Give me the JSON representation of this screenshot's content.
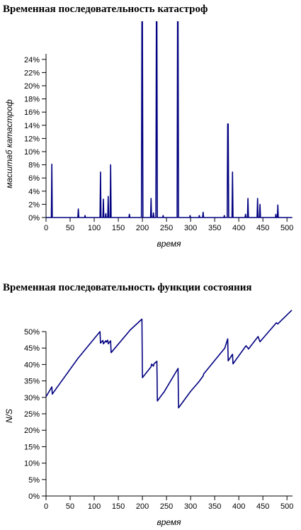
{
  "chart_data": [
    {
      "type": "line",
      "title": "Временная последовательность катастроф",
      "xlabel": "время",
      "ylabel": "масштаб катастроф",
      "xlim": [
        0,
        510
      ],
      "ylim": [
        0,
        25
      ],
      "x_ticks": [
        0,
        50,
        100,
        150,
        200,
        250,
        300,
        350,
        400,
        450,
        500
      ],
      "y_ticks": [
        "0%",
        "2%",
        "4%",
        "6%",
        "8%",
        "10%",
        "12%",
        "14%",
        "16%",
        "18%",
        "20%",
        "22%",
        "24%"
      ],
      "line_color": "#000080",
      "series": [
        {
          "x": [
            0,
            11,
            12,
            13,
            14,
            66,
            67,
            68,
            80,
            81,
            82,
            112,
            113,
            114,
            118,
            119,
            120,
            123,
            124,
            125,
            128,
            129,
            130,
            133,
            134,
            135,
            172,
            173,
            174,
            198,
            199,
            200,
            201,
            202,
            217,
            218,
            219,
            222,
            223,
            224,
            228,
            229,
            230,
            231,
            232,
            242,
            243,
            244,
            272,
            273,
            274,
            275,
            276,
            298,
            299,
            300,
            317,
            318,
            319,
            325,
            326,
            327,
            369,
            370,
            371,
            376,
            377,
            378,
            379,
            380,
            386,
            387,
            388,
            413,
            414,
            415,
            418,
            419,
            420,
            438,
            439,
            440,
            443,
            444,
            445,
            476,
            477,
            478,
            480,
            481,
            482,
            510
          ],
          "y": [
            0,
            0,
            8.1,
            0,
            0,
            0,
            1.3,
            0,
            0,
            0.3,
            0,
            0,
            6.9,
            0,
            0,
            2.8,
            0,
            0,
            0.6,
            0,
            0,
            3.2,
            0,
            0,
            8.0,
            0,
            0,
            0.5,
            0,
            0,
            30,
            30,
            0,
            0,
            0,
            2.9,
            0,
            0,
            0.7,
            0,
            0,
            30,
            30,
            0,
            0,
            0,
            0.3,
            0,
            0,
            30,
            30,
            0,
            0,
            0,
            0.3,
            0,
            0,
            0.3,
            0,
            0,
            0.8,
            0,
            0,
            0.3,
            0,
            0,
            14.2,
            14.2,
            0,
            0,
            0,
            6.9,
            0,
            0,
            0.5,
            0,
            0,
            2.9,
            0,
            0,
            2.9,
            0,
            0,
            2.0,
            0,
            0,
            0.5,
            0,
            0,
            1.9,
            0,
            0
          ]
        }
      ]
    },
    {
      "type": "line",
      "title": "Временная последовательность функции состояния",
      "xlabel": "время",
      "ylabel": "N/S",
      "xlim": [
        0,
        510
      ],
      "ylim": [
        0,
        52
      ],
      "x_ticks": [
        0,
        50,
        100,
        150,
        200,
        250,
        300,
        350,
        400,
        450,
        500
      ],
      "y_ticks": [
        "0%",
        "5%",
        "10%",
        "15%",
        "20%",
        "25%",
        "30%",
        "35%",
        "40%",
        "45%",
        "50%"
      ],
      "line_color": "#000080",
      "series": [
        {
          "x": [
            0,
            12,
            13,
            66,
            67,
            112,
            113,
            118,
            119,
            124,
            125,
            128,
            129,
            134,
            135,
            173,
            174,
            199,
            200,
            218,
            219,
            223,
            224,
            230,
            231,
            243,
            244,
            274,
            275,
            299,
            300,
            318,
            319,
            326,
            327,
            370,
            371,
            377,
            378,
            387,
            388,
            414,
            415,
            419,
            420,
            439,
            440,
            444,
            445,
            477,
            478,
            481,
            482,
            510
          ],
          "y": [
            30.2,
            33.2,
            31.0,
            41.8,
            42.0,
            50.0,
            46.5,
            47.3,
            46.3,
            47.2,
            46.8,
            47.4,
            46.3,
            47.2,
            43.6,
            50.2,
            50.4,
            53.8,
            36.0,
            39.3,
            40.1,
            39.5,
            40.2,
            41.0,
            28.9,
            31.3,
            31.4,
            38.8,
            26.8,
            31.6,
            31.8,
            34.9,
            35.1,
            36.5,
            37.1,
            44.8,
            45.0,
            47.8,
            41.1,
            43.1,
            40.2,
            45.5,
            45.7,
            45.0,
            44.7,
            48.3,
            48.5,
            46.9,
            47.1,
            52.5,
            52.7,
            52.3,
            52.5,
            56.5
          ]
        }
      ]
    }
  ]
}
